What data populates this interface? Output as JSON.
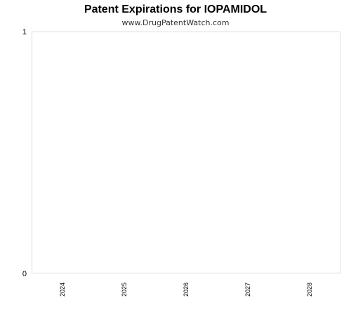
{
  "chart_data": {
    "type": "bar",
    "title": "Patent Expirations for IOPAMIDOL",
    "subtitle": "www.DrugPatentWatch.com",
    "categories": [
      "2024",
      "2025",
      "2026",
      "2027",
      "2028"
    ],
    "values": [
      0,
      0,
      0,
      0,
      0
    ],
    "xlabel": "",
    "ylabel": "",
    "ylim": [
      0,
      1
    ],
    "yticks": [
      "0",
      "1"
    ],
    "grid": false,
    "legend": "none",
    "colors": {
      "plot_border": "#dddddd",
      "bar": "#4a6fa5"
    }
  }
}
